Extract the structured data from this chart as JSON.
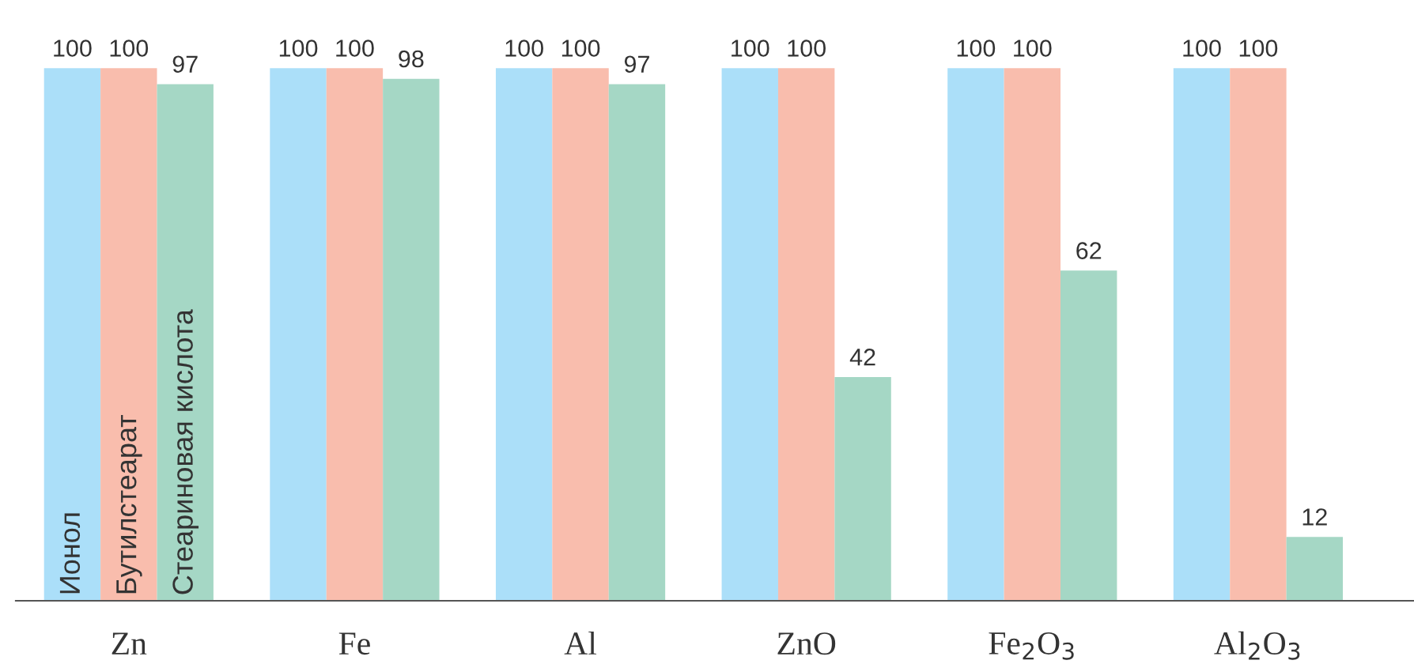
{
  "chart_data": {
    "type": "bar",
    "categories": [
      "Zn",
      "Fe",
      "Al",
      "ZnO",
      "Fe$_{2}$O$_{3}$",
      "Al$_{2}$O$_{3}$"
    ],
    "series": [
      {
        "name": "Ионол",
        "color": "#abdff9",
        "values": [
          100,
          100,
          100,
          100,
          100,
          100
        ]
      },
      {
        "name": "Бутилстеарат",
        "color": "#f9bdad",
        "values": [
          100,
          100,
          100,
          100,
          100,
          100
        ]
      },
      {
        "name": "Стеариновая кислота",
        "color": "#a5d7c5",
        "values": [
          97,
          98,
          97,
          42,
          62,
          12
        ]
      }
    ],
    "data_labels": true,
    "grid": false,
    "legend": false
  }
}
